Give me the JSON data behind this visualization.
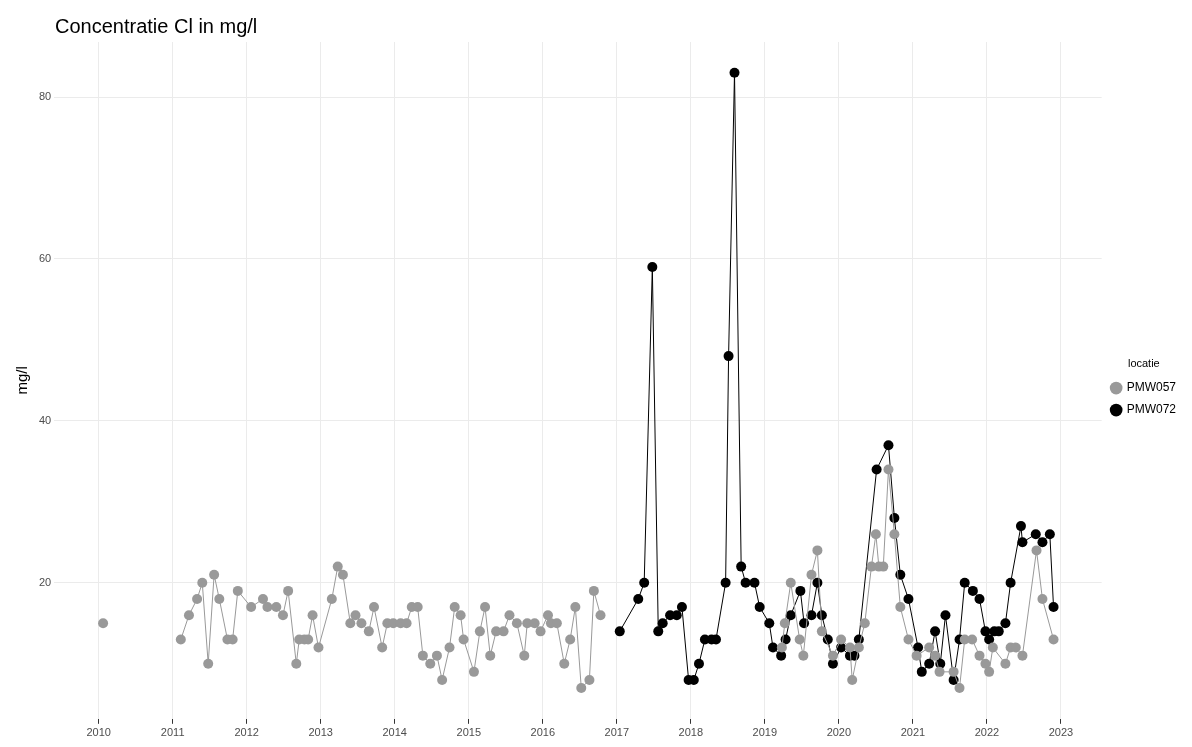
{
  "chart_data": {
    "type": "line",
    "title": "Concentratie Cl in mg/l",
    "ylabel": "mg/l",
    "legend_title": "locatie",
    "legend": "right",
    "grid": true,
    "marker": "circle",
    "line_style": "solid",
    "xlim": [
      2009.4,
      2023.55
    ],
    "xticks": [
      2010,
      2011,
      2012,
      2013,
      2014,
      2015,
      2016,
      2017,
      2018,
      2019,
      2020,
      2021,
      2022,
      2023
    ],
    "ylim": [
      3.2,
      86.8
    ],
    "yticks": [
      20,
      40,
      60,
      80
    ],
    "series": [
      {
        "name": "PMW057",
        "color": "#999999",
        "x": [
          2010.06,
          2010.5,
          2011.11,
          2011.22,
          2011.33,
          2011.4,
          2011.48,
          2011.56,
          2011.63,
          2011.74,
          2011.81,
          2011.88,
          2012.06,
          2012.22,
          2012.28,
          2012.4,
          2012.49,
          2012.56,
          2012.67,
          2012.71,
          2012.78,
          2012.83,
          2012.89,
          2012.97,
          2013.15,
          2013.23,
          2013.3,
          2013.4,
          2013.47,
          2013.55,
          2013.65,
          2013.72,
          2013.83,
          2013.9,
          2013.98,
          2014.08,
          2014.16,
          2014.23,
          2014.31,
          2014.38,
          2014.48,
          2014.57,
          2014.64,
          2014.74,
          2014.81,
          2014.89,
          2014.93,
          2015.07,
          2015.15,
          2015.22,
          2015.29,
          2015.37,
          2015.47,
          2015.55,
          2015.65,
          2015.75,
          2015.79,
          2015.89,
          2015.97,
          2016.07,
          2016.11,
          2016.19,
          2016.29,
          2016.37,
          2016.44,
          2016.52,
          2016.63,
          2016.69,
          2016.78,
          2018.0,
          2019.23,
          2019.27,
          2019.35,
          2019.47,
          2019.52,
          2019.63,
          2019.71,
          2019.77,
          2019.92,
          2020.03,
          2020.15,
          2020.18,
          2020.27,
          2020.35,
          2020.44,
          2020.5,
          2020.54,
          2020.6,
          2020.67,
          2020.75,
          2020.83,
          2020.94,
          2021.05,
          2021.22,
          2021.3,
          2021.36,
          2021.55,
          2021.63,
          2021.7,
          2021.8,
          2021.9,
          2021.98,
          2022.03,
          2022.08,
          2022.25,
          2022.32,
          2022.39,
          2022.48,
          2022.67,
          2022.75,
          2022.9
        ],
        "values": [
          15,
          null,
          13,
          16,
          18,
          20,
          10,
          21,
          18,
          13,
          13,
          19,
          17,
          18,
          17,
          17,
          16,
          19,
          10,
          13,
          13,
          13,
          16,
          12,
          18,
          22,
          21,
          15,
          16,
          15,
          14,
          17,
          12,
          15,
          15,
          15,
          15,
          17,
          17,
          11,
          10,
          11,
          8,
          12,
          17,
          16,
          13,
          9,
          14,
          17,
          11,
          14,
          14,
          16,
          15,
          11,
          15,
          15,
          14,
          16,
          15,
          15,
          10,
          13,
          17,
          7,
          8,
          19,
          16,
          null,
          12,
          15,
          20,
          13,
          11,
          21,
          24,
          14,
          11,
          13,
          12,
          8,
          12,
          15,
          22,
          26,
          22,
          22,
          34,
          26,
          17,
          13,
          11,
          12,
          11,
          9,
          9,
          7,
          13,
          13,
          11,
          10,
          9,
          12,
          10,
          12,
          12,
          11,
          24,
          18,
          13
        ]
      },
      {
        "name": "PMW072",
        "color": "#000000",
        "x": [
          2017.04,
          2017.29,
          2017.37,
          2017.48,
          2017.56,
          2017.62,
          2017.72,
          2017.81,
          2017.88,
          2017.97,
          2018.04,
          2018.11,
          2018.19,
          2018.28,
          2018.34,
          2018.47,
          2018.51,
          2018.59,
          2018.68,
          2018.74,
          2018.86,
          2018.93,
          2019.06,
          2019.11,
          2019.22,
          2019.28,
          2019.35,
          2019.48,
          2019.53,
          2019.63,
          2019.71,
          2019.77,
          2019.85,
          2019.92,
          2020.03,
          2020.15,
          2020.21,
          2020.27,
          2020.51,
          2020.67,
          2020.75,
          2020.83,
          2020.94,
          2021.07,
          2021.12,
          2021.22,
          2021.3,
          2021.37,
          2021.44,
          2021.55,
          2021.63,
          2021.7,
          2021.81,
          2021.9,
          2021.98,
          2022.03,
          2022.1,
          2022.16,
          2022.25,
          2022.32,
          2022.46,
          2022.48,
          2022.66,
          2022.75,
          2022.85,
          2022.9
        ],
        "values": [
          14,
          18,
          20,
          59,
          14,
          15,
          16,
          16,
          17,
          8,
          8,
          10,
          13,
          13,
          13,
          20,
          48,
          83,
          22,
          20,
          20,
          17,
          15,
          12,
          11,
          13,
          16,
          19,
          15,
          16,
          20,
          16,
          13,
          10,
          12,
          11,
          11,
          13,
          34,
          37,
          28,
          21,
          18,
          12,
          9,
          10,
          14,
          10,
          16,
          8,
          13,
          20,
          19,
          18,
          14,
          13,
          14,
          14,
          15,
          20,
          27,
          25,
          26,
          25,
          26,
          17
        ]
      }
    ]
  }
}
